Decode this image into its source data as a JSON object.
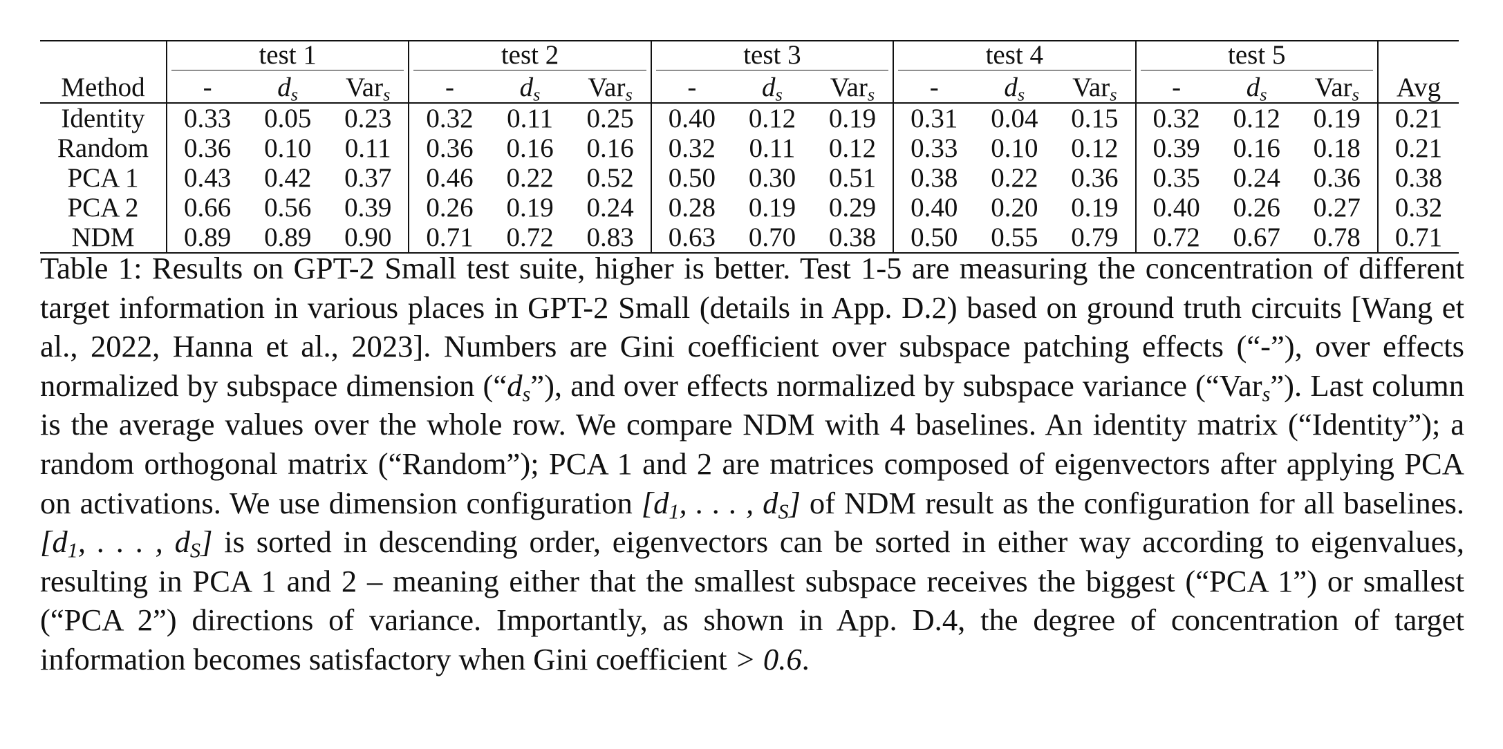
{
  "table": {
    "method_header": "Method",
    "avg_header": "Avg",
    "groups": [
      {
        "label": "test 1",
        "subcols": [
          "-",
          "d",
          "Var"
        ]
      },
      {
        "label": "test 2",
        "subcols": [
          "-",
          "d",
          "Var"
        ]
      },
      {
        "label": "test 3",
        "subcols": [
          "-",
          "d",
          "Var"
        ]
      },
      {
        "label": "test 4",
        "subcols": [
          "-",
          "d",
          "Var"
        ]
      },
      {
        "label": "test 5",
        "subcols": [
          "-",
          "d",
          "Var"
        ]
      }
    ],
    "subscript": "s",
    "rows": [
      {
        "method": "Identity",
        "values": [
          "0.33",
          "0.05",
          "0.23",
          "0.32",
          "0.11",
          "0.25",
          "0.40",
          "0.12",
          "0.19",
          "0.31",
          "0.04",
          "0.15",
          "0.32",
          "0.12",
          "0.19"
        ],
        "avg": "0.21",
        "avg_bold": false
      },
      {
        "method": "Random",
        "values": [
          "0.36",
          "0.10",
          "0.11",
          "0.36",
          "0.16",
          "0.16",
          "0.32",
          "0.11",
          "0.12",
          "0.33",
          "0.10",
          "0.12",
          "0.39",
          "0.16",
          "0.18"
        ],
        "avg": "0.21",
        "avg_bold": false
      },
      {
        "method": "PCA 1",
        "values": [
          "0.43",
          "0.42",
          "0.37",
          "0.46",
          "0.22",
          "0.52",
          "0.50",
          "0.30",
          "0.51",
          "0.38",
          "0.22",
          "0.36",
          "0.35",
          "0.24",
          "0.36"
        ],
        "avg": "0.38",
        "avg_bold": false
      },
      {
        "method": "PCA 2",
        "values": [
          "0.66",
          "0.56",
          "0.39",
          "0.26",
          "0.19",
          "0.24",
          "0.28",
          "0.19",
          "0.29",
          "0.40",
          "0.20",
          "0.19",
          "0.40",
          "0.26",
          "0.27"
        ],
        "avg": "0.32",
        "avg_bold": false
      },
      {
        "method": "NDM",
        "values": [
          "0.89",
          "0.89",
          "0.90",
          "0.71",
          "0.72",
          "0.83",
          "0.63",
          "0.70",
          "0.38",
          "0.50",
          "0.55",
          "0.79",
          "0.72",
          "0.67",
          "0.78"
        ],
        "avg": "0.71",
        "avg_bold": true
      }
    ]
  },
  "caption": {
    "label": "Table 1:",
    "s1": " Results on GPT-2 Small test suite, higher is better. Test 1-5 are measuring the concentration of different target information in various places in GPT-2 Small (details in App. D.2) based on ground truth circuits [Wang et al., 2022, Hanna et al., 2023]. Numbers are Gini coefficient over subspace patching effects (“-”), over effects normalized by subspace dimension (“",
    "m_ds": "d",
    "m_ds_sub": "s",
    "s2": "”), and over effects normalized by subspace variance (“Var",
    "m_var_sub": "s",
    "s3": "”). Last column is the average values over the whole row. We compare NDM with 4 baselines. An identity matrix (“Identity”); a random orthogonal matrix (“Random”); PCA 1 and 2 are matrices composed of eigenvectors after applying PCA on activations. We use dimension configuration ",
    "m_config_1": "[d",
    "m_config_1_sub": "1",
    "m_config_mid": ", . . . , d",
    "m_config_S_sub": "S",
    "m_config_end": "]",
    "s4": " of NDM result as the configuration for all baselines. ",
    "s5": " is sorted in descending order, eigenvectors can be sorted in either way according to eigenvalues, resulting in PCA 1 and 2 – meaning either that the smallest subspace receives the biggest (“PCA 1”) or smallest (“PCA 2”) directions of variance. Importantly, as shown in App. D.4, the degree of concentration of target information becomes satisfactory when Gini coefficient ",
    "m_gt": "> 0.6",
    "s6": "."
  }
}
